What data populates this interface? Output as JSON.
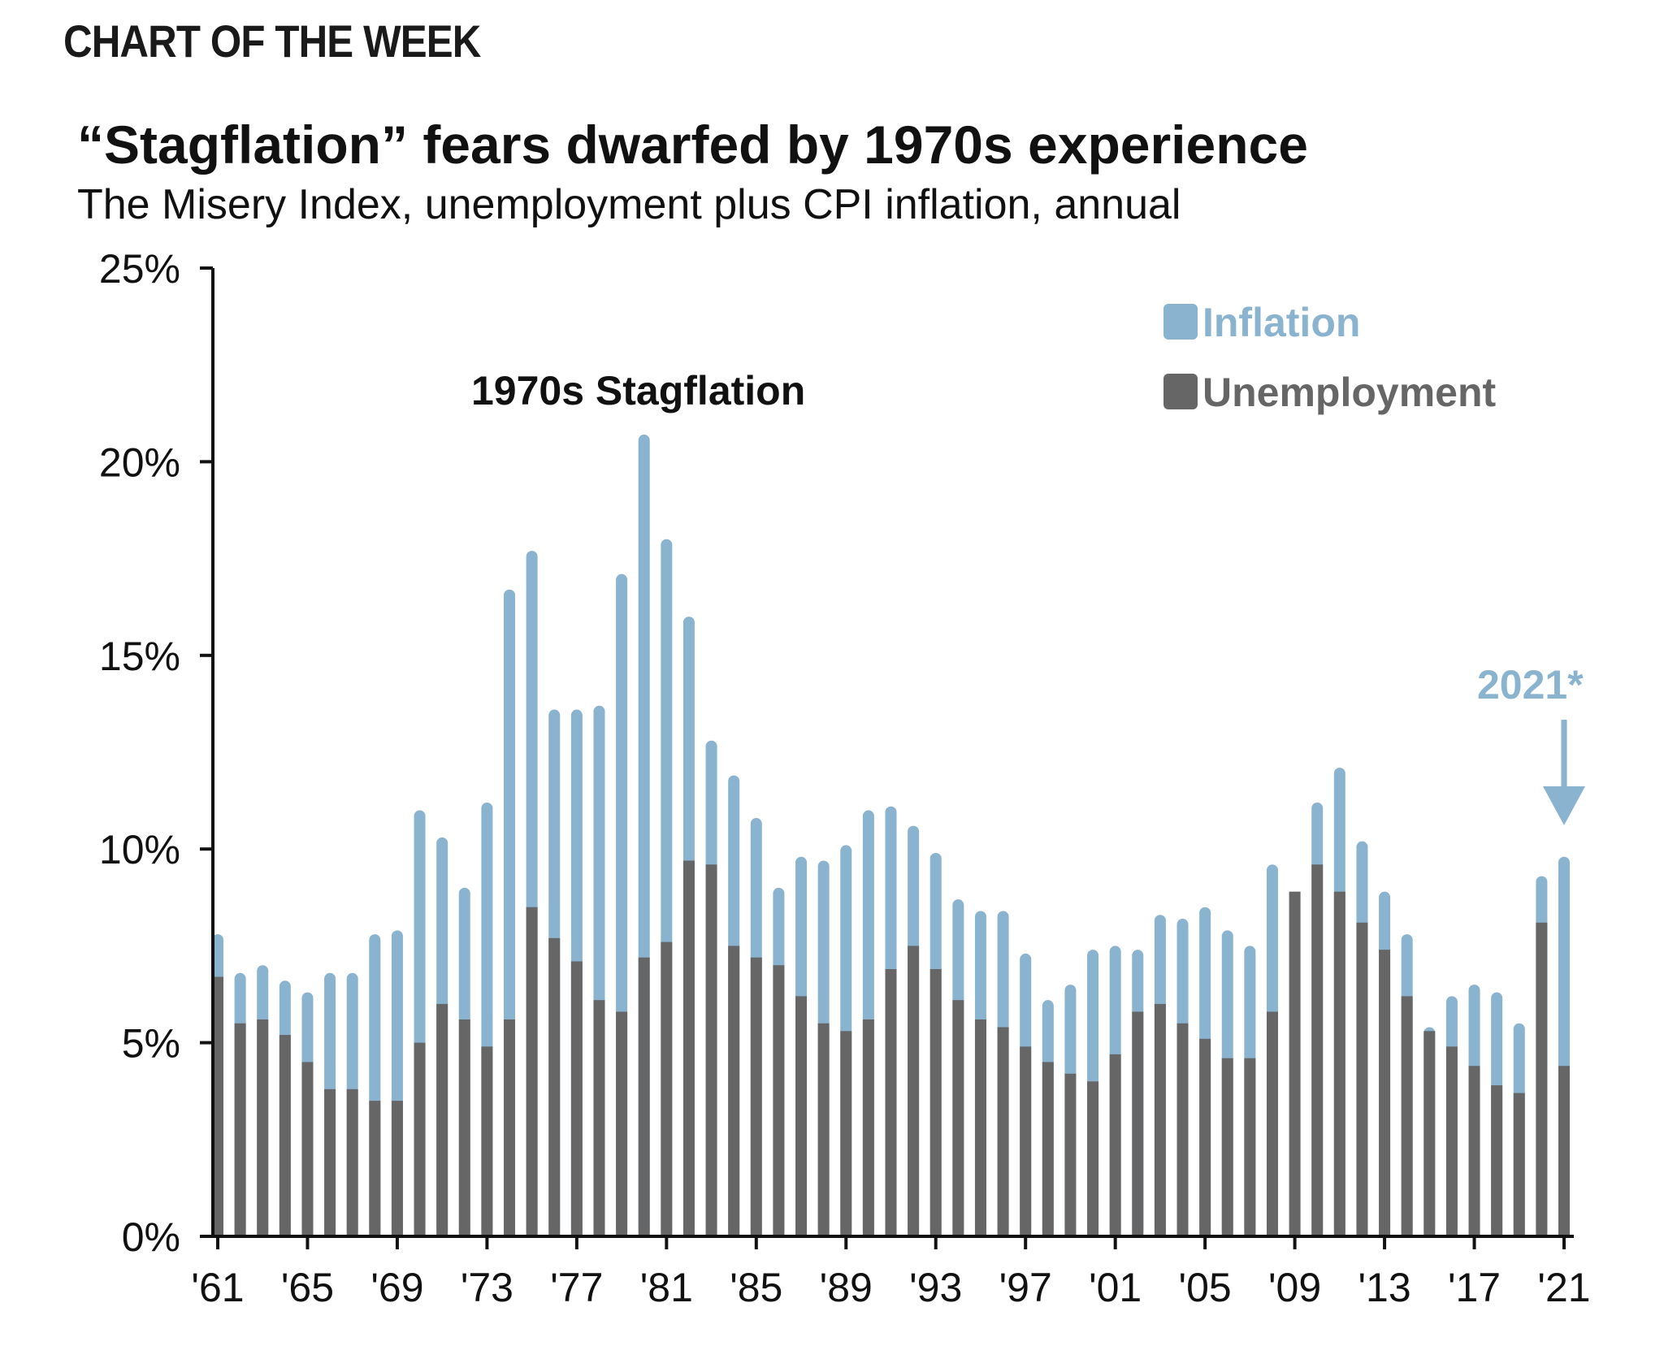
{
  "header": {
    "kicker": "CHART OF THE WEEK",
    "title": "“Stagflation” fears dwarfed by 1970s experience",
    "subtitle": "The Misery Index, unemployment plus CPI inflation, annual"
  },
  "colors": {
    "inflation": "#8ab3cf",
    "unemployment": "#666666",
    "axis": "#111111",
    "note": "#8ab3cf"
  },
  "chart_data": {
    "type": "bar",
    "stacked": true,
    "title": "“Stagflation” fears dwarfed by 1970s experience",
    "subtitle": "The Misery Index, unemployment plus CPI inflation, annual",
    "xlabel": "",
    "ylabel": "",
    "ylim": [
      0,
      25
    ],
    "yticks": [
      0,
      5,
      10,
      15,
      20,
      25
    ],
    "ytick_labels": [
      "0%",
      "5%",
      "10%",
      "15%",
      "20%",
      "25%"
    ],
    "xtick_labels": [
      "'61",
      "'65",
      "'69",
      "'73",
      "'77",
      "'81",
      "'85",
      "'89",
      "'93",
      "'97",
      "'01",
      "'05",
      "'09",
      "'13",
      "'17",
      "'21"
    ],
    "xtick_years": [
      1961,
      1965,
      1969,
      1973,
      1977,
      1981,
      1985,
      1989,
      1993,
      1997,
      2001,
      2005,
      2009,
      2013,
      2017,
      2021
    ],
    "legend": {
      "position": "top-right",
      "entries": [
        "Inflation",
        "Unemployment"
      ]
    },
    "annotations": {
      "stagflation_label": "1970s Stagflation",
      "latest_label": "2021*"
    },
    "categories": [
      1961,
      1962,
      1963,
      1964,
      1965,
      1966,
      1967,
      1968,
      1969,
      1970,
      1971,
      1972,
      1973,
      1974,
      1975,
      1976,
      1977,
      1978,
      1979,
      1980,
      1981,
      1982,
      1983,
      1984,
      1985,
      1986,
      1987,
      1988,
      1989,
      1990,
      1991,
      1992,
      1993,
      1994,
      1995,
      1996,
      1997,
      1998,
      1999,
      2000,
      2001,
      2002,
      2003,
      2004,
      2005,
      2006,
      2007,
      2008,
      2009,
      2010,
      2011,
      2012,
      2013,
      2014,
      2015,
      2016,
      2017,
      2018,
      2019,
      2020,
      2021
    ],
    "series": [
      {
        "name": "Unemployment",
        "values": [
          6.7,
          5.5,
          5.6,
          5.2,
          4.5,
          3.8,
          3.8,
          3.5,
          3.5,
          5.0,
          6.0,
          5.6,
          4.9,
          5.6,
          8.5,
          7.7,
          7.1,
          6.1,
          5.8,
          7.2,
          7.6,
          9.7,
          9.6,
          7.5,
          7.2,
          7.0,
          6.2,
          5.5,
          5.3,
          5.6,
          6.9,
          7.5,
          6.9,
          6.1,
          5.6,
          5.4,
          4.9,
          4.5,
          4.2,
          4.0,
          4.7,
          5.8,
          6.0,
          5.5,
          5.1,
          4.6,
          4.6,
          5.8,
          9.3,
          9.6,
          8.9,
          8.1,
          7.4,
          6.2,
          5.3,
          4.9,
          4.4,
          3.9,
          3.7,
          8.1,
          4.4
        ]
      },
      {
        "name": "Inflation",
        "values": [
          1.1,
          1.3,
          1.4,
          1.4,
          1.8,
          3.0,
          3.0,
          4.3,
          4.4,
          6.0,
          4.3,
          3.4,
          6.3,
          11.1,
          9.2,
          5.9,
          6.5,
          7.6,
          11.3,
          13.5,
          10.4,
          6.3,
          3.2,
          4.4,
          3.6,
          2.0,
          3.6,
          4.2,
          4.8,
          5.4,
          4.2,
          3.1,
          3.0,
          2.6,
          2.8,
          3.0,
          2.4,
          1.6,
          2.3,
          3.4,
          2.8,
          1.6,
          2.3,
          2.7,
          3.4,
          3.3,
          2.9,
          3.8,
          -0.4,
          1.6,
          3.2,
          2.1,
          1.5,
          1.6,
          0.1,
          1.3,
          2.1,
          2.4,
          1.8,
          1.2,
          5.4
        ]
      }
    ]
  }
}
